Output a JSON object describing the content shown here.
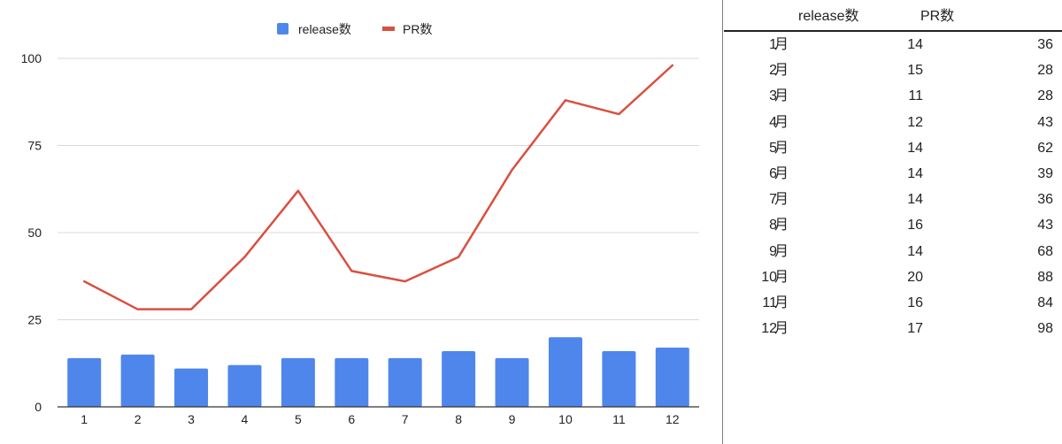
{
  "chart_data": {
    "type": "bar+line",
    "categories": [
      "1",
      "2",
      "3",
      "4",
      "5",
      "6",
      "7",
      "8",
      "9",
      "10",
      "11",
      "12"
    ],
    "series": [
      {
        "name": "release数",
        "type": "bar",
        "color": "#4f86ec",
        "values": [
          14,
          15,
          11,
          12,
          14,
          14,
          14,
          16,
          14,
          20,
          16,
          17
        ]
      },
      {
        "name": "PR数",
        "type": "line",
        "color": "#d9503f",
        "values": [
          36,
          28,
          28,
          43,
          62,
          39,
          36,
          43,
          68,
          88,
          84,
          98
        ]
      }
    ],
    "yticks": [
      "0",
      "25",
      "50",
      "75",
      "100"
    ],
    "ylim": [
      0,
      110
    ],
    "grid": true,
    "legend": "top-center"
  },
  "table": {
    "headers": {
      "release": "release数",
      "pr": "PR数"
    },
    "rows": [
      {
        "month": "1",
        "unit": "月",
        "release": "14",
        "pr": "36"
      },
      {
        "month": "2",
        "unit": "月",
        "release": "15",
        "pr": "28"
      },
      {
        "month": "3",
        "unit": "月",
        "release": "11",
        "pr": "28"
      },
      {
        "month": "4",
        "unit": "月",
        "release": "12",
        "pr": "43"
      },
      {
        "month": "5",
        "unit": "月",
        "release": "14",
        "pr": "62"
      },
      {
        "month": "6",
        "unit": "月",
        "release": "14",
        "pr": "39"
      },
      {
        "month": "7",
        "unit": "月",
        "release": "14",
        "pr": "36"
      },
      {
        "month": "8",
        "unit": "月",
        "release": "16",
        "pr": "43"
      },
      {
        "month": "9",
        "unit": "月",
        "release": "14",
        "pr": "68"
      },
      {
        "month": "10",
        "unit": "月",
        "release": "20",
        "pr": "88"
      },
      {
        "month": "11",
        "unit": "月",
        "release": "16",
        "pr": "84"
      },
      {
        "month": "12",
        "unit": "月",
        "release": "17",
        "pr": "98"
      }
    ]
  }
}
